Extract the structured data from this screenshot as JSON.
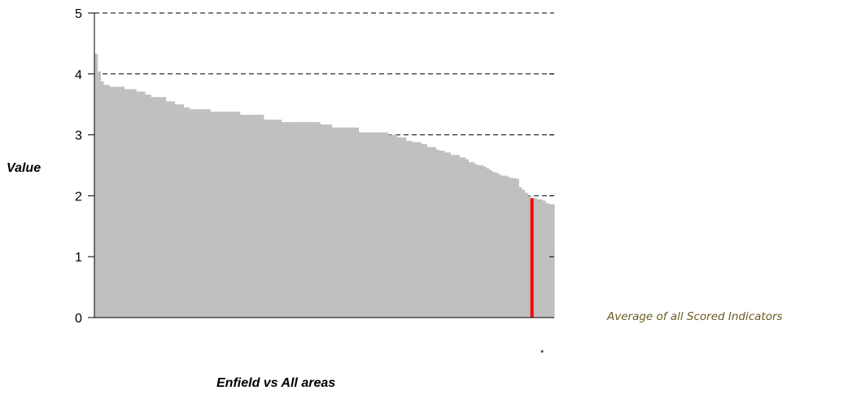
{
  "chart_data": {
    "type": "bar",
    "ylabel": "Value",
    "xlabel": "Enfield vs All areas",
    "side_label": "Average of all Scored Indicators",
    "highlight_marker": "*",
    "ylim": [
      0,
      5
    ],
    "yticks": [
      "0",
      "1",
      "2",
      "3",
      "4",
      "5"
    ],
    "gridlines": [
      2,
      3,
      4,
      5
    ],
    "colors": {
      "bars": "#c0c0c0",
      "highlight": "#ff0000",
      "side_label": "#6b5a22"
    },
    "highlight_index": 147,
    "values": [
      4.33,
      4.04,
      3.88,
      3.82,
      3.82,
      3.79,
      3.79,
      3.79,
      3.79,
      3.79,
      3.75,
      3.75,
      3.75,
      3.75,
      3.71,
      3.71,
      3.71,
      3.66,
      3.66,
      3.62,
      3.62,
      3.62,
      3.62,
      3.62,
      3.55,
      3.55,
      3.55,
      3.5,
      3.5,
      3.5,
      3.45,
      3.45,
      3.42,
      3.42,
      3.42,
      3.42,
      3.42,
      3.42,
      3.42,
      3.38,
      3.38,
      3.38,
      3.38,
      3.38,
      3.38,
      3.38,
      3.38,
      3.38,
      3.38,
      3.33,
      3.33,
      3.33,
      3.33,
      3.33,
      3.33,
      3.33,
      3.33,
      3.25,
      3.25,
      3.25,
      3.25,
      3.25,
      3.25,
      3.21,
      3.21,
      3.21,
      3.21,
      3.21,
      3.21,
      3.21,
      3.21,
      3.21,
      3.21,
      3.21,
      3.21,
      3.21,
      3.17,
      3.17,
      3.17,
      3.17,
      3.12,
      3.12,
      3.12,
      3.12,
      3.12,
      3.12,
      3.12,
      3.12,
      3.12,
      3.04,
      3.04,
      3.04,
      3.04,
      3.04,
      3.04,
      3.04,
      3.04,
      3.04,
      3.04,
      3.0,
      3.0,
      3.0,
      2.96,
      2.96,
      2.96,
      2.9,
      2.9,
      2.88,
      2.88,
      2.88,
      2.85,
      2.85,
      2.8,
      2.8,
      2.8,
      2.76,
      2.74,
      2.74,
      2.71,
      2.71,
      2.67,
      2.67,
      2.67,
      2.63,
      2.63,
      2.6,
      2.55,
      2.55,
      2.52,
      2.5,
      2.5,
      2.48,
      2.45,
      2.42,
      2.39,
      2.38,
      2.35,
      2.33,
      2.33,
      2.31,
      2.29,
      2.29,
      2.28,
      2.14,
      2.1,
      2.05,
      2.0,
      1.96,
      1.96,
      1.94,
      1.94,
      1.92,
      1.88,
      1.86,
      1.86
    ]
  }
}
